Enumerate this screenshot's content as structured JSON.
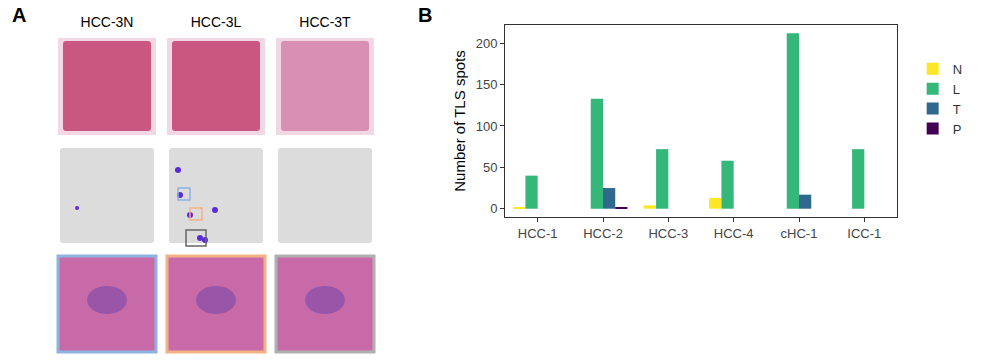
{
  "panel_labels": [
    "A",
    "B"
  ],
  "panel_a": {
    "samples": [
      "HCC-3N",
      "HCC-3L",
      "HCC-3T"
    ]
  },
  "chart_data": {
    "type": "bar",
    "categories": [
      "HCC-1",
      "HCC-2",
      "HCC-3",
      "HCC-4",
      "cHC-1",
      "ICC-1"
    ],
    "series": [
      {
        "name": "N",
        "color": "#fde725",
        "values": [
          1,
          0,
          4,
          13,
          0,
          0
        ]
      },
      {
        "name": "L",
        "color": "#35b779",
        "values": [
          40,
          133,
          72,
          58,
          212,
          72
        ]
      },
      {
        "name": "T",
        "color": "#31688e",
        "values": [
          0,
          25,
          0,
          0,
          17,
          0
        ]
      },
      {
        "name": "P",
        "color": "#440154",
        "values": [
          0,
          2,
          0,
          0,
          0,
          0
        ]
      }
    ],
    "y_label": "Number of TLS spots",
    "ylim": [
      -10,
      222
    ],
    "yticks": [
      0,
      50,
      100,
      150,
      200
    ],
    "grid": false,
    "legend": "right"
  }
}
